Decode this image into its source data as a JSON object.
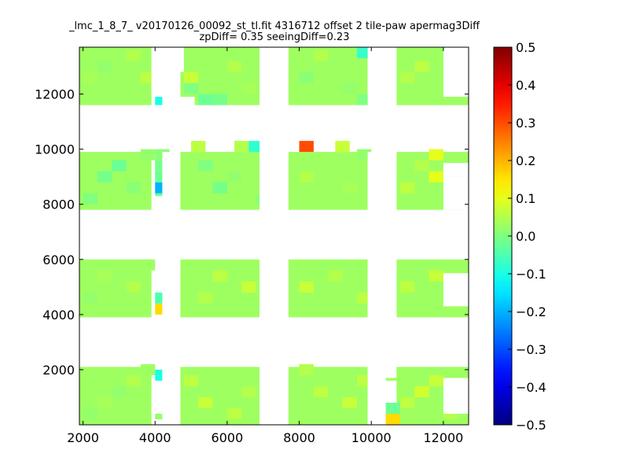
{
  "chart_data": {
    "type": "heatmap",
    "title": "_lmc_1_8_7_ v20170126_00092_st_tl.fit 4316712 offset 2 tile-paw apermag3Diff",
    "subtitle": "zpDiff= 0.35 seeingDiff=0.23",
    "xlabel": "",
    "ylabel": "",
    "xlim": [
      1900,
      12700
    ],
    "ylim": [
      0,
      13700
    ],
    "x_ticks": [
      {
        "value": 2000,
        "label": "2000"
      },
      {
        "value": 4000,
        "label": "4000"
      },
      {
        "value": 6000,
        "label": "6000"
      },
      {
        "value": 8000,
        "label": "8000"
      },
      {
        "value": 10000,
        "label": "10000"
      },
      {
        "value": 12000,
        "label": "12000"
      }
    ],
    "y_ticks": [
      {
        "value": 2000,
        "label": "2000"
      },
      {
        "value": 4000,
        "label": "4000"
      },
      {
        "value": 6000,
        "label": "6000"
      },
      {
        "value": 8000,
        "label": "8000"
      },
      {
        "value": 10000,
        "label": "10000"
      },
      {
        "value": 12000,
        "label": "12000"
      }
    ],
    "colorbar": {
      "colormap": "jet",
      "range": [
        -0.5,
        0.5
      ],
      "ticks": [
        {
          "value": 0.5,
          "label": "0.5"
        },
        {
          "value": 0.4,
          "label": "0.4"
        },
        {
          "value": 0.3,
          "label": "0.3"
        },
        {
          "value": 0.2,
          "label": "0.2"
        },
        {
          "value": 0.1,
          "label": "0.1"
        },
        {
          "value": 0.0,
          "label": "0.0"
        },
        {
          "value": -0.1,
          "label": "−0.1"
        },
        {
          "value": -0.2,
          "label": "−0.2"
        },
        {
          "value": -0.3,
          "label": "−0.3"
        },
        {
          "value": -0.4,
          "label": "−0.4"
        },
        {
          "value": -0.5,
          "label": "−0.5"
        }
      ]
    },
    "cell_size": [
      400,
      400
    ],
    "background_value": 0.03,
    "blocks": [
      {
        "x": [
          1900,
          3900
        ],
        "y": [
          0,
          2100
        ]
      },
      {
        "x": [
          4700,
          6900
        ],
        "y": [
          0,
          2100
        ]
      },
      {
        "x": [
          7700,
          9900
        ],
        "y": [
          0,
          2100
        ]
      },
      {
        "x": [
          10700,
          12700
        ],
        "y": [
          0,
          2100
        ]
      },
      {
        "x": [
          1900,
          3900
        ],
        "y": [
          3900,
          6000
        ]
      },
      {
        "x": [
          4700,
          6900
        ],
        "y": [
          3900,
          6000
        ]
      },
      {
        "x": [
          7700,
          9900
        ],
        "y": [
          3900,
          6000
        ]
      },
      {
        "x": [
          10700,
          12700
        ],
        "y": [
          3900,
          6000
        ]
      },
      {
        "x": [
          1900,
          3900
        ],
        "y": [
          7800,
          9900
        ]
      },
      {
        "x": [
          4700,
          6900
        ],
        "y": [
          7800,
          9900
        ]
      },
      {
        "x": [
          7700,
          9900
        ],
        "y": [
          7800,
          9900
        ]
      },
      {
        "x": [
          10700,
          12700
        ],
        "y": [
          7800,
          9900
        ]
      },
      {
        "x": [
          1900,
          3900
        ],
        "y": [
          11600,
          13700
        ]
      },
      {
        "x": [
          4700,
          6900
        ],
        "y": [
          11600,
          13700
        ]
      },
      {
        "x": [
          7700,
          9900
        ],
        "y": [
          11600,
          13700
        ]
      },
      {
        "x": [
          10700,
          12700
        ],
        "y": [
          11600,
          13700
        ]
      }
    ],
    "cells": [
      {
        "x": 2000,
        "y": 200,
        "v": 0.02
      },
      {
        "x": 2400,
        "y": 600,
        "v": 0.04
      },
      {
        "x": 2800,
        "y": 1000,
        "v": 0.02
      },
      {
        "x": 3200,
        "y": 1400,
        "v": 0.05
      },
      {
        "x": 3600,
        "y": 1800,
        "v": 0.03
      },
      {
        "x": 4800,
        "y": 1400,
        "v": 0.06
      },
      {
        "x": 5200,
        "y": 600,
        "v": 0.07
      },
      {
        "x": 6000,
        "y": 200,
        "v": 0.06
      },
      {
        "x": 6400,
        "y": 1000,
        "v": 0.05
      },
      {
        "x": 8000,
        "y": 1800,
        "v": 0.05
      },
      {
        "x": 8400,
        "y": 1000,
        "v": 0.06
      },
      {
        "x": 9200,
        "y": 600,
        "v": 0.07
      },
      {
        "x": 9600,
        "y": 1400,
        "v": 0.06
      },
      {
        "x": 10800,
        "y": 600,
        "v": 0.06
      },
      {
        "x": 11200,
        "y": 1000,
        "v": 0.08
      },
      {
        "x": 11600,
        "y": 1400,
        "v": 0.07
      },
      {
        "x": 12000,
        "y": 200,
        "v": 0.05
      },
      {
        "x": 2000,
        "y": 4400,
        "v": 0.02
      },
      {
        "x": 2400,
        "y": 5200,
        "v": 0.04
      },
      {
        "x": 3200,
        "y": 4800,
        "v": 0.05
      },
      {
        "x": 3600,
        "y": 5600,
        "v": 0.03
      },
      {
        "x": 5200,
        "y": 4400,
        "v": 0.05
      },
      {
        "x": 5600,
        "y": 5200,
        "v": 0.06
      },
      {
        "x": 6400,
        "y": 4800,
        "v": 0.07
      },
      {
        "x": 8000,
        "y": 4800,
        "v": 0.07
      },
      {
        "x": 8800,
        "y": 5200,
        "v": 0.05
      },
      {
        "x": 9600,
        "y": 4400,
        "v": 0.06
      },
      {
        "x": 10800,
        "y": 4800,
        "v": 0.06
      },
      {
        "x": 11600,
        "y": 5200,
        "v": 0.07
      },
      {
        "x": 12000,
        "y": 4000,
        "v": 0.03
      },
      {
        "x": 2000,
        "y": 8000,
        "v": 0.0
      },
      {
        "x": 2400,
        "y": 8800,
        "v": -0.01
      },
      {
        "x": 2800,
        "y": 9200,
        "v": -0.02
      },
      {
        "x": 3200,
        "y": 8400,
        "v": 0.01
      },
      {
        "x": 3600,
        "y": 9600,
        "v": 0.02
      },
      {
        "x": 5200,
        "y": 9200,
        "v": 0.0
      },
      {
        "x": 5600,
        "y": 8400,
        "v": -0.01
      },
      {
        "x": 6000,
        "y": 8800,
        "v": 0.02
      },
      {
        "x": 6800,
        "y": 8000,
        "v": 0.01
      },
      {
        "x": 8000,
        "y": 8800,
        "v": 0.05
      },
      {
        "x": 8400,
        "y": 9200,
        "v": 0.03
      },
      {
        "x": 9200,
        "y": 8400,
        "v": 0.04
      },
      {
        "x": 9600,
        "y": 9600,
        "v": 0.02
      },
      {
        "x": 10800,
        "y": 8400,
        "v": 0.06
      },
      {
        "x": 11200,
        "y": 9200,
        "v": 0.05
      },
      {
        "x": 12000,
        "y": 8000,
        "v": 0.03
      },
      {
        "x": 2000,
        "y": 12400,
        "v": 0.04
      },
      {
        "x": 2400,
        "y": 12800,
        "v": 0.02
      },
      {
        "x": 2800,
        "y": 12000,
        "v": 0.03
      },
      {
        "x": 3200,
        "y": 13200,
        "v": 0.05
      },
      {
        "x": 3600,
        "y": 12400,
        "v": 0.06
      },
      {
        "x": 4800,
        "y": 12400,
        "v": 0.07
      },
      {
        "x": 5200,
        "y": 11600,
        "v": -0.02
      },
      {
        "x": 5600,
        "y": 11600,
        "v": -0.01
      },
      {
        "x": 6000,
        "y": 12800,
        "v": 0.05
      },
      {
        "x": 6400,
        "y": 12000,
        "v": 0.04
      },
      {
        "x": 8000,
        "y": 12400,
        "v": 0.01
      },
      {
        "x": 8400,
        "y": 13200,
        "v": 0.05
      },
      {
        "x": 9200,
        "y": 12000,
        "v": 0.02
      },
      {
        "x": 9600,
        "y": 11600,
        "v": 0.0
      },
      {
        "x": 10800,
        "y": 12400,
        "v": 0.05
      },
      {
        "x": 11200,
        "y": 12800,
        "v": 0.06
      },
      {
        "x": 12000,
        "y": 13200,
        "v": 0.04
      },
      {
        "x": 4000,
        "y": 1600,
        "v": -0.1
      },
      {
        "x": 4000,
        "y": 200,
        "v": 0.02
      },
      {
        "x": 4000,
        "y": 4000,
        "v": 0.16
      },
      {
        "x": 4000,
        "y": 4400,
        "v": -0.05
      },
      {
        "x": 4000,
        "y": 8000,
        "v": -0.02
      },
      {
        "x": 4000,
        "y": 8400,
        "v": -0.2
      },
      {
        "x": 4000,
        "y": 8800,
        "v": -0.02
      },
      {
        "x": 4000,
        "y": 9200,
        "v": -0.01
      },
      {
        "x": 4000,
        "y": 9600,
        "v": 0.01
      },
      {
        "x": 4000,
        "y": 11600,
        "v": -0.1
      },
      {
        "x": 4000,
        "y": 12000,
        "v": 0.02
      },
      {
        "x": 4000,
        "y": 12400,
        "v": 0.03
      },
      {
        "x": 4000,
        "y": 12800,
        "v": 0.02
      },
      {
        "x": 4000,
        "y": 13200,
        "v": 0.04
      },
      {
        "x": 4800,
        "y": 12000,
        "v": 0.0
      },
      {
        "x": 10400,
        "y": 0,
        "v": 0.16
      },
      {
        "x": 10400,
        "y": 400,
        "v": -0.02
      },
      {
        "x": 10400,
        "y": 1600,
        "v": 0.03
      },
      {
        "x": 5000,
        "y": 9900,
        "v": 0.06
      },
      {
        "x": 6200,
        "y": 9900,
        "v": 0.05
      },
      {
        "x": 6600,
        "y": 9900,
        "v": -0.08
      },
      {
        "x": 8000,
        "y": 9900,
        "v": 0.3
      },
      {
        "x": 9000,
        "y": 9900,
        "v": 0.07
      },
      {
        "x": 9600,
        "y": 13300,
        "v": -0.07
      },
      {
        "x": 11600,
        "y": 8800,
        "v": 0.1
      },
      {
        "x": 11600,
        "y": 9600,
        "v": 0.1
      }
    ],
    "gaps": [
      {
        "x": [
          4200,
          4700
        ],
        "y": [
          0,
          2100
        ]
      },
      {
        "x": [
          4200,
          4700
        ],
        "y": [
          3900,
          6000
        ]
      },
      {
        "x": [
          4200,
          4700
        ],
        "y": [
          7800,
          9900
        ]
      },
      {
        "x": [
          4200,
          4700
        ],
        "y": [
          11600,
          13700
        ]
      },
      {
        "x": [
          3900,
          4200
        ],
        "y": [
          400,
          1200
        ]
      },
      {
        "x": [
          3900,
          4200
        ],
        "y": [
          11900,
          13700
        ]
      },
      {
        "x": [
          4700,
          5100
        ],
        "y": [
          11600,
          11900
        ]
      },
      {
        "x": [
          4700,
          4800
        ],
        "y": [
          12800,
          13700
        ]
      },
      {
        "x": [
          3900,
          4200
        ],
        "y": [
          7800,
          8300
        ]
      },
      {
        "x": [
          6900,
          7700
        ],
        "y": [
          0,
          13700
        ]
      },
      {
        "x": [
          9900,
          10700
        ],
        "y": [
          11600,
          13700
        ]
      },
      {
        "x": [
          9900,
          10700
        ],
        "y": [
          7800,
          9900
        ]
      },
      {
        "x": [
          9900,
          10700
        ],
        "y": [
          3900,
          6000
        ]
      },
      {
        "x": [
          9900,
          10300
        ],
        "y": [
          0,
          2100
        ]
      },
      {
        "x": [
          10300,
          10700
        ],
        "y": [
          1700,
          2100
        ]
      },
      {
        "x": [
          10300,
          10700
        ],
        "y": [
          800,
          1300
        ]
      },
      {
        "x": [
          12000,
          12700
        ],
        "y": [
          7800,
          9000
        ]
      },
      {
        "x": [
          12000,
          12700
        ],
        "y": [
          9000,
          9500
        ]
      },
      {
        "x": [
          12000,
          12700
        ],
        "y": [
          11900,
          13700
        ]
      },
      {
        "x": [
          12000,
          12700
        ],
        "y": [
          4300,
          5500
        ]
      },
      {
        "x": [
          12000,
          12700
        ],
        "y": [
          400,
          1700
        ]
      }
    ]
  }
}
